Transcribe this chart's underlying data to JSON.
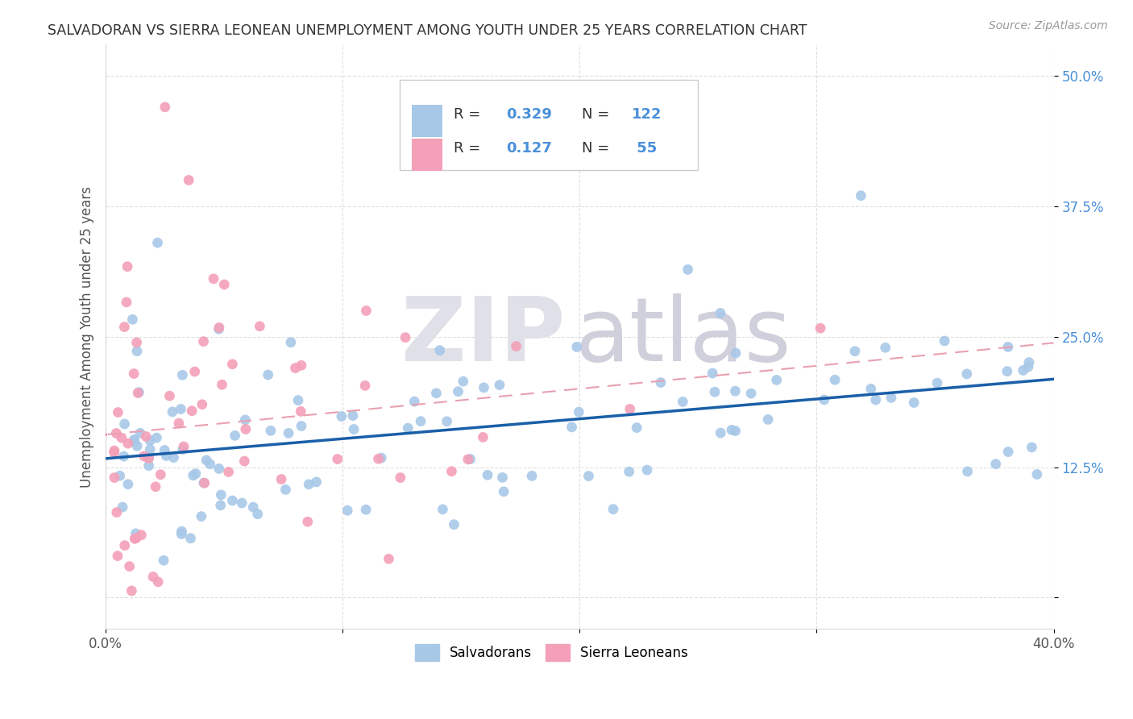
{
  "title": "SALVADORAN VS SIERRA LEONEAN UNEMPLOYMENT AMONG YOUTH UNDER 25 YEARS CORRELATION CHART",
  "source": "Source: ZipAtlas.com",
  "ylabel": "Unemployment Among Youth under 25 years",
  "ytick_values": [
    0.0,
    0.125,
    0.25,
    0.375,
    0.5
  ],
  "ytick_labels": [
    "",
    "12.5%",
    "25.0%",
    "37.5%",
    "50.0%"
  ],
  "xtick_values": [
    0.0,
    0.1,
    0.2,
    0.3,
    0.4
  ],
  "xtick_labels": [
    "0.0%",
    "",
    "",
    "",
    "40.0%"
  ],
  "xlim": [
    0.0,
    0.4
  ],
  "ylim": [
    -0.03,
    0.53
  ],
  "r_sal": 0.329,
  "n_sal": 122,
  "r_sl": 0.127,
  "n_sl": 55,
  "color_salvadoran": "#a8c8e8",
  "color_sierraleone": "#f4a0b8",
  "trendline_sal_color": "#1a5fa8",
  "trendline_sl_color": "#e06080",
  "trendline_sl_dash_color": "#e8a0b0",
  "watermark_zip_color": "#e0e0e8",
  "watermark_atlas_color": "#d0d0dc",
  "legend_r_color": "#4a90d9",
  "legend_n_color": "#4a90d9",
  "legend_label_color": "#333333",
  "title_color": "#333333",
  "source_color": "#999999",
  "ylabel_color": "#555555",
  "ytick_color": "#4a90d9",
  "xtick_color": "#555555",
  "grid_color": "#d8d8d8",
  "legend_border_color": "#cccccc",
  "bottom_legend_labels": [
    "Salvadorans",
    "Sierra Leoneans"
  ]
}
